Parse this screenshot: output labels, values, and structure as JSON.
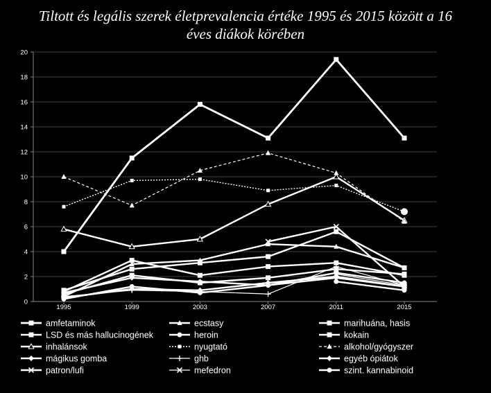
{
  "chart_data": {
    "type": "line",
    "title_lines": [
      "Tiltott és legális szerek életprevalencia értéke 1995 és 2015 között a 16",
      "éves diákok körében"
    ],
    "categories": [
      "1995",
      "1999",
      "2003",
      "2007",
      "2011",
      "2015"
    ],
    "y_ticks": [
      "0",
      "2",
      "4",
      "6",
      "8",
      "10",
      "12",
      "14",
      "16",
      "18",
      "20"
    ],
    "ylim": [
      0,
      20
    ],
    "grid": "horizontal",
    "legend_position": "bottom",
    "series": [
      {
        "name": "amfetaminok",
        "values": [
          4.0,
          11.5,
          15.8,
          13.1,
          19.4,
          13.1
        ],
        "style": "solid",
        "width": 2.8,
        "marker": "square"
      },
      {
        "name": "ecstasy",
        "values": [
          0.4,
          3.0,
          3.3,
          4.6,
          4.4,
          2.7
        ],
        "style": "solid",
        "width": 2.4,
        "marker": "triangle"
      },
      {
        "name": "marihuána, hasis",
        "values": [
          0.8,
          3.3,
          2.1,
          2.8,
          3.1,
          2.1
        ],
        "style": "solid",
        "width": 2.4,
        "marker": "square"
      },
      {
        "name": "LSD és más hallucinogének",
        "values": [
          0.9,
          2.6,
          3.1,
          3.6,
          5.6,
          2.7
        ],
        "style": "solid",
        "width": 2.4,
        "marker": "square"
      },
      {
        "name": "heroin",
        "values": [
          0.2,
          1.2,
          0.7,
          1.3,
          2.3,
          1.5
        ],
        "style": "solid",
        "width": 2.4,
        "marker": "circle"
      },
      {
        "name": "kokain",
        "values": [
          0.6,
          2.1,
          1.5,
          1.9,
          2.6,
          2.2
        ],
        "style": "solid",
        "width": 2.4,
        "marker": "square"
      },
      {
        "name": "inhalánsok",
        "values": [
          5.8,
          4.4,
          5.0,
          7.8,
          10.0,
          6.5
        ],
        "style": "solid",
        "width": 2.4,
        "marker": "triangle-open"
      },
      {
        "name": "nyugtató",
        "values": [
          7.6,
          9.7,
          9.8,
          8.9,
          9.3,
          7.2
        ],
        "style": "dotted",
        "width": 1.4,
        "marker": "square-small"
      },
      {
        "name": "alkohol/gyógyszer",
        "values": [
          10.0,
          7.7,
          10.5,
          11.9,
          10.3,
          6.4
        ],
        "style": "dashed",
        "width": 1.2,
        "marker": "triangle"
      },
      {
        "name": "mágikus gomba",
        "values": [
          0.7,
          1.9,
          1.6,
          1.3,
          1.9,
          1.2
        ],
        "style": "solid",
        "width": 2.4,
        "marker": "diamond"
      },
      {
        "name": "ghb",
        "values": [
          0.4,
          0.9,
          0.8,
          0.6,
          2.8,
          1.3
        ],
        "style": "solid",
        "width": 1.2,
        "marker": "plus"
      },
      {
        "name": "egyéb ópiátok",
        "values": [
          0.3,
          1.0,
          0.9,
          1.5,
          2.0,
          1.2
        ],
        "style": "solid",
        "width": 2.4,
        "marker": "diamond"
      },
      {
        "name": "patron/lufi",
        "values": [
          null,
          null,
          null,
          4.8,
          6.0,
          1.2
        ],
        "style": "solid",
        "width": 2.4,
        "marker": "x"
      },
      {
        "name": "mefedron",
        "values": [
          null,
          null,
          null,
          null,
          2.2,
          1.3
        ],
        "style": "solid",
        "width": 1.2,
        "marker": "x"
      },
      {
        "name": "szint. kannabinoid",
        "values": [
          null,
          null,
          null,
          null,
          1.6,
          0.9
        ],
        "style": "solid",
        "width": 2.4,
        "marker": "circle"
      }
    ],
    "extra_point": {
      "x": "2015",
      "value": 7.2,
      "marker": "circle-large"
    },
    "colors": {
      "background": "#000000",
      "line": "#ffffff",
      "grid": "#555555"
    }
  }
}
